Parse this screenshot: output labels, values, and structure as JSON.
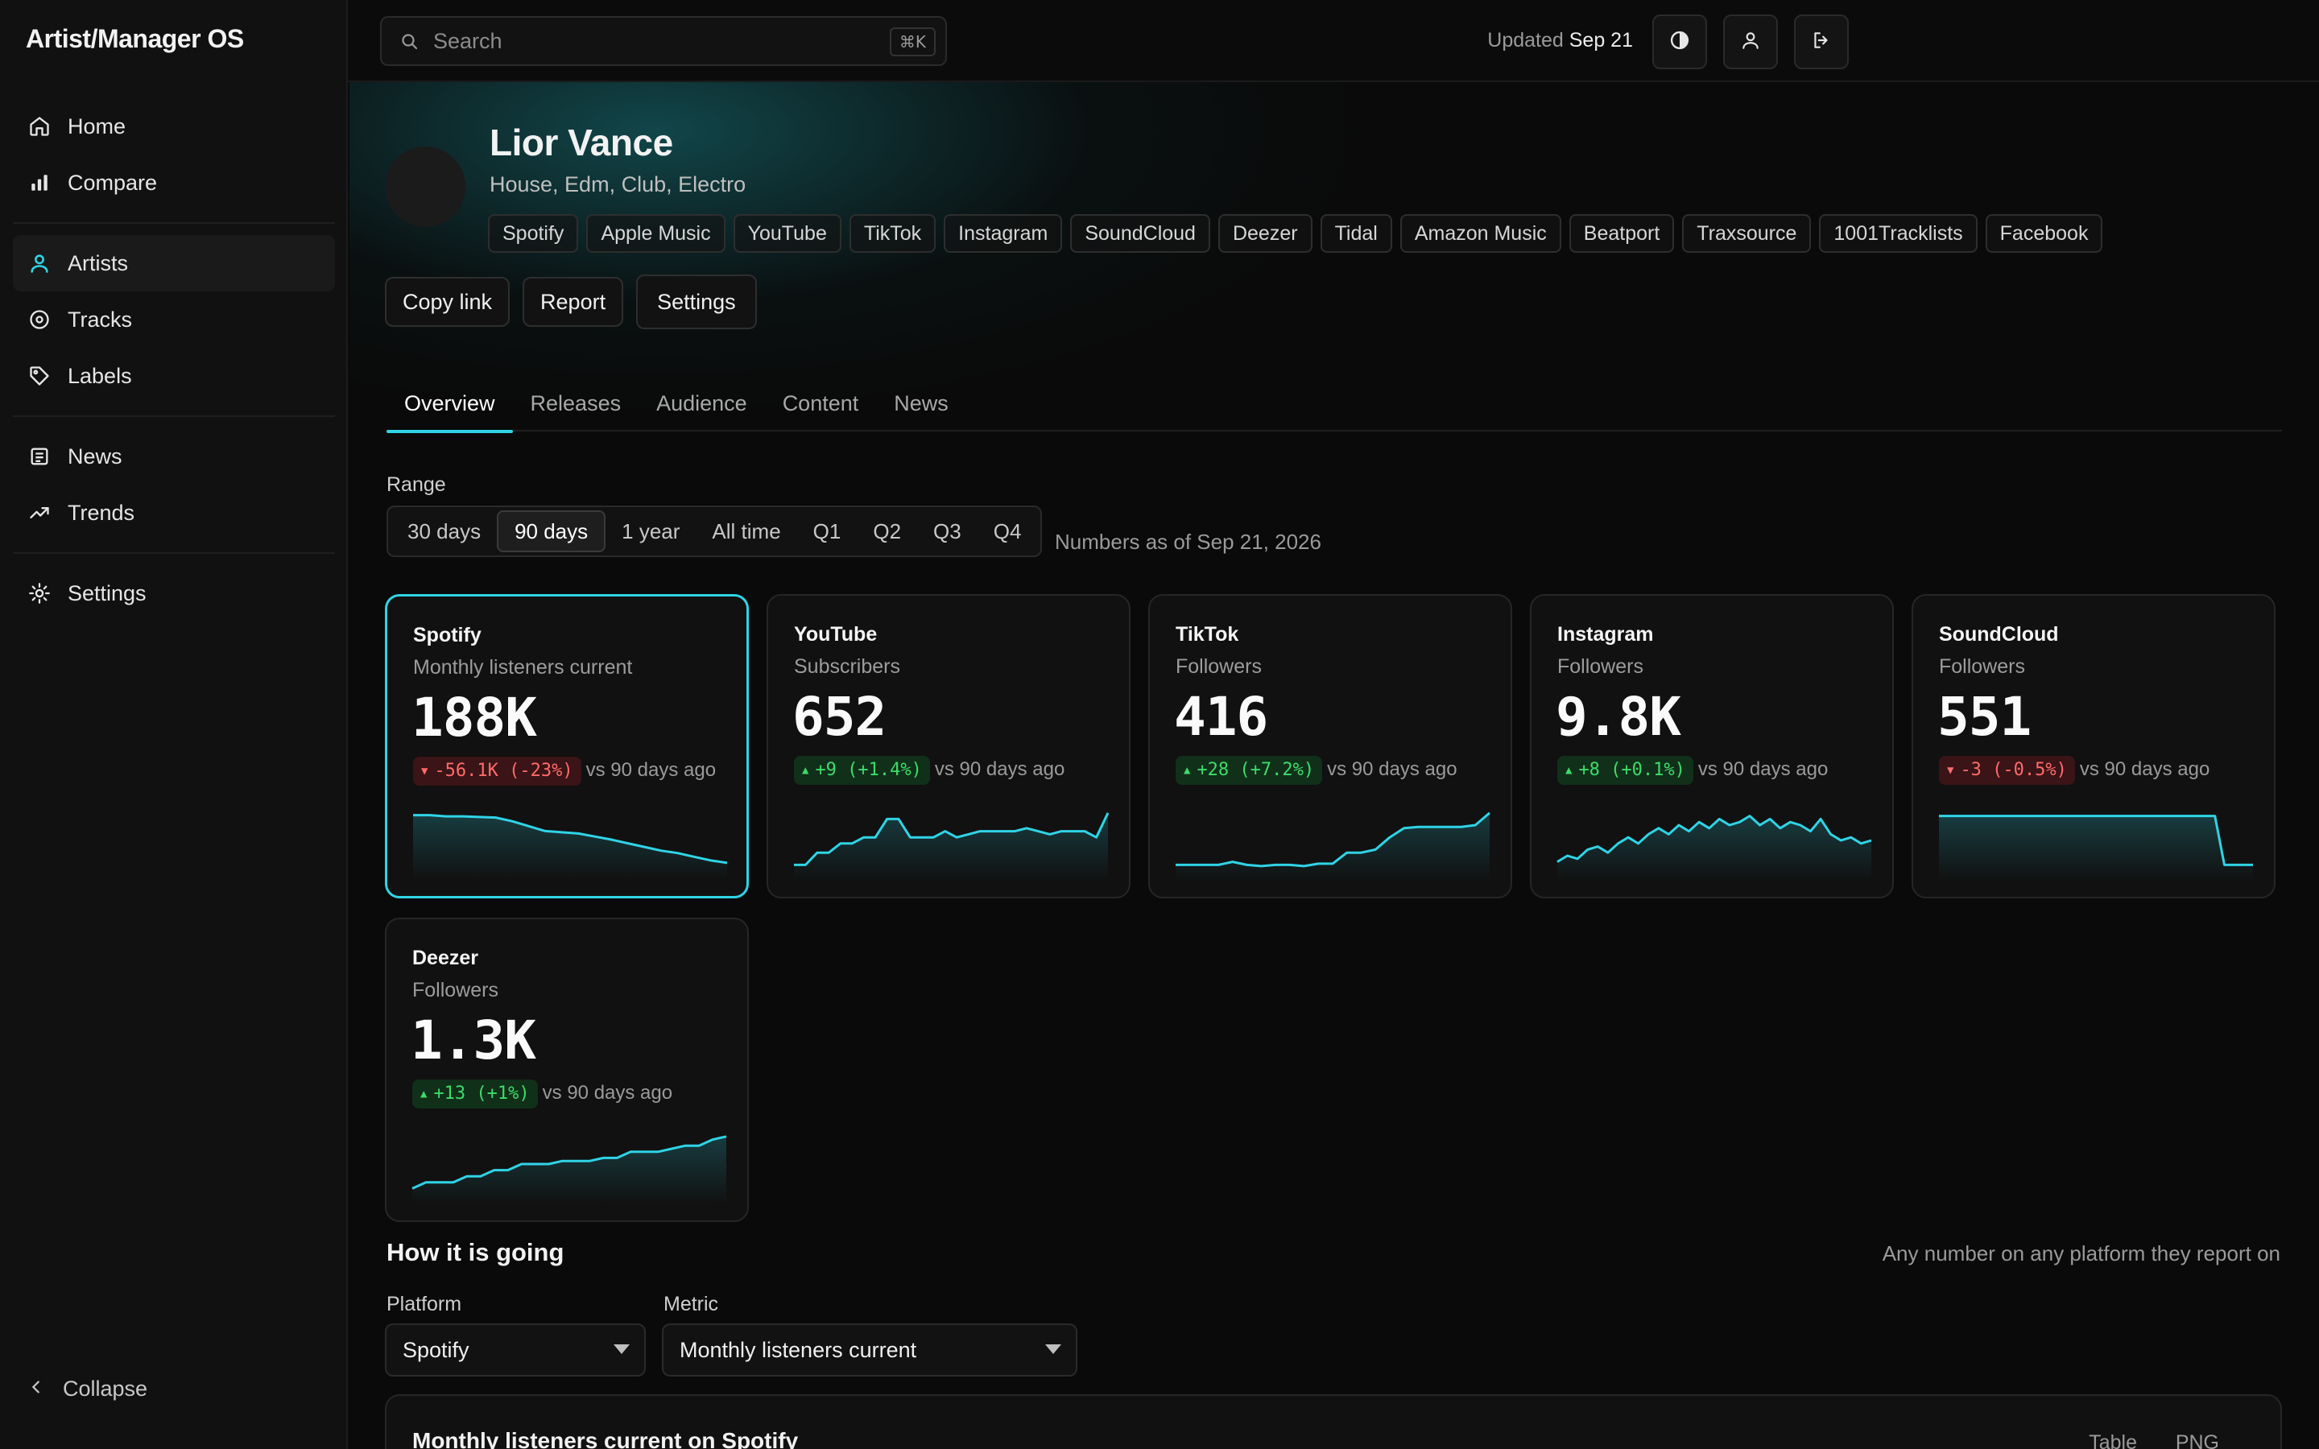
{
  "app": {
    "title": "Artist/Manager OS"
  },
  "sidebar": {
    "items": [
      {
        "label": "Home",
        "icon": "home-icon"
      },
      {
        "label": "Compare",
        "icon": "bar-chart-icon"
      },
      {
        "label": "Artists",
        "icon": "user-icon",
        "active": true
      },
      {
        "label": "Tracks",
        "icon": "disc-icon"
      },
      {
        "label": "Labels",
        "icon": "tag-icon"
      },
      {
        "label": "News",
        "icon": "newspaper-icon"
      },
      {
        "label": "Trends",
        "icon": "trending-up-icon"
      },
      {
        "label": "Settings",
        "icon": "gear-icon"
      }
    ],
    "collapse_label": "Collapse"
  },
  "topbar": {
    "search_placeholder": "Search",
    "shortcut": "⌘K",
    "updated_prefix": "Updated",
    "updated_date": "Sep 21"
  },
  "artist": {
    "name": "Lior Vance",
    "genres": "House, Edm, Club, Electro",
    "platforms": [
      "Spotify",
      "Apple Music",
      "YouTube",
      "TikTok",
      "Instagram",
      "SoundCloud",
      "Deezer",
      "Tidal",
      "Amazon Music",
      "Beatport",
      "Traxsource",
      "1001Tracklists",
      "Facebook"
    ],
    "actions": {
      "copy_link": "Copy link",
      "report": "Report",
      "settings": "Settings"
    }
  },
  "tabs": [
    {
      "label": "Overview",
      "active": true
    },
    {
      "label": "Releases"
    },
    {
      "label": "Audience"
    },
    {
      "label": "Content"
    },
    {
      "label": "News"
    }
  ],
  "range": {
    "label": "Range",
    "options": [
      "30 days",
      "90 days",
      "1 year",
      "All time",
      "Q1",
      "Q2",
      "Q3",
      "Q4"
    ],
    "selected": "90 days",
    "as_of": "Numbers as of Sep 21, 2026"
  },
  "colors": {
    "accent": "#2fd4e6",
    "down": "#ff6b6b",
    "up": "#3ddc6a"
  },
  "cards": [
    {
      "platform": "Spotify",
      "metric": "Monthly listeners current",
      "value": "188K",
      "delta": "-56.1K (-23%)",
      "direction": "down",
      "vs": "vs 90 days ago",
      "selected": true,
      "trend": [
        0.9,
        0.9,
        0.88,
        0.88,
        0.87,
        0.86,
        0.8,
        0.72,
        0.64,
        0.62,
        0.6,
        0.55,
        0.5,
        0.44,
        0.38,
        0.32,
        0.28,
        0.22,
        0.16,
        0.12
      ]
    },
    {
      "platform": "YouTube",
      "metric": "Subscribers",
      "value": "652",
      "delta": "+9 (+1.4%)",
      "direction": "up",
      "vs": "vs 90 days ago",
      "trend": [
        0.1,
        0.1,
        0.3,
        0.3,
        0.45,
        0.45,
        0.55,
        0.55,
        0.85,
        0.85,
        0.55,
        0.55,
        0.55,
        0.65,
        0.55,
        0.6,
        0.65,
        0.65,
        0.65,
        0.65,
        0.7,
        0.65,
        0.6,
        0.65,
        0.65,
        0.65,
        0.55,
        0.95
      ]
    },
    {
      "platform": "TikTok",
      "metric": "Followers",
      "value": "416",
      "delta": "+28 (+7.2%)",
      "direction": "up",
      "vs": "vs 90 days ago",
      "trend": [
        0.1,
        0.1,
        0.1,
        0.1,
        0.15,
        0.1,
        0.08,
        0.1,
        0.1,
        0.08,
        0.12,
        0.12,
        0.3,
        0.3,
        0.35,
        0.55,
        0.7,
        0.72,
        0.72,
        0.72,
        0.72,
        0.75,
        0.95
      ]
    },
    {
      "platform": "Instagram",
      "metric": "Followers",
      "value": "9.8K",
      "delta": "+8 (+0.1%)",
      "direction": "up",
      "vs": "vs 90 days ago",
      "trend": [
        0.15,
        0.25,
        0.2,
        0.35,
        0.4,
        0.3,
        0.45,
        0.55,
        0.45,
        0.6,
        0.7,
        0.6,
        0.75,
        0.65,
        0.8,
        0.7,
        0.85,
        0.75,
        0.8,
        0.9,
        0.75,
        0.85,
        0.7,
        0.8,
        0.75,
        0.65,
        0.85,
        0.6,
        0.5,
        0.55,
        0.45,
        0.5
      ]
    },
    {
      "platform": "SoundCloud",
      "metric": "Followers",
      "value": "551",
      "delta": "-3 (-0.5%)",
      "direction": "down",
      "vs": "vs 90 days ago",
      "trend": [
        0.9,
        0.9,
        0.9,
        0.9,
        0.9,
        0.9,
        0.9,
        0.9,
        0.9,
        0.9,
        0.9,
        0.9,
        0.9,
        0.9,
        0.9,
        0.9,
        0.9,
        0.9,
        0.9,
        0.9,
        0.9,
        0.9,
        0.9,
        0.9,
        0.9,
        0.9,
        0.9,
        0.9,
        0.9,
        0.9,
        0.1,
        0.1,
        0.1,
        0.1
      ]
    },
    {
      "platform": "Deezer",
      "metric": "Followers",
      "value": "1.3K",
      "delta": "+13 (+1%)",
      "direction": "up",
      "vs": "vs 90 days ago",
      "trend": [
        0.1,
        0.2,
        0.2,
        0.2,
        0.3,
        0.3,
        0.4,
        0.4,
        0.5,
        0.5,
        0.5,
        0.55,
        0.55,
        0.55,
        0.6,
        0.6,
        0.7,
        0.7,
        0.7,
        0.75,
        0.8,
        0.8,
        0.9,
        0.95
      ]
    }
  ],
  "how_it_is_going": {
    "title": "How it is going",
    "subtitle": "Any number on any platform they report on",
    "platform_label": "Platform",
    "platform_value": "Spotify",
    "metric_label": "Metric",
    "metric_value": "Monthly listeners current",
    "chart_title": "Monthly listeners current on Spotify",
    "table_label": "Table",
    "png_label": "PNG"
  }
}
